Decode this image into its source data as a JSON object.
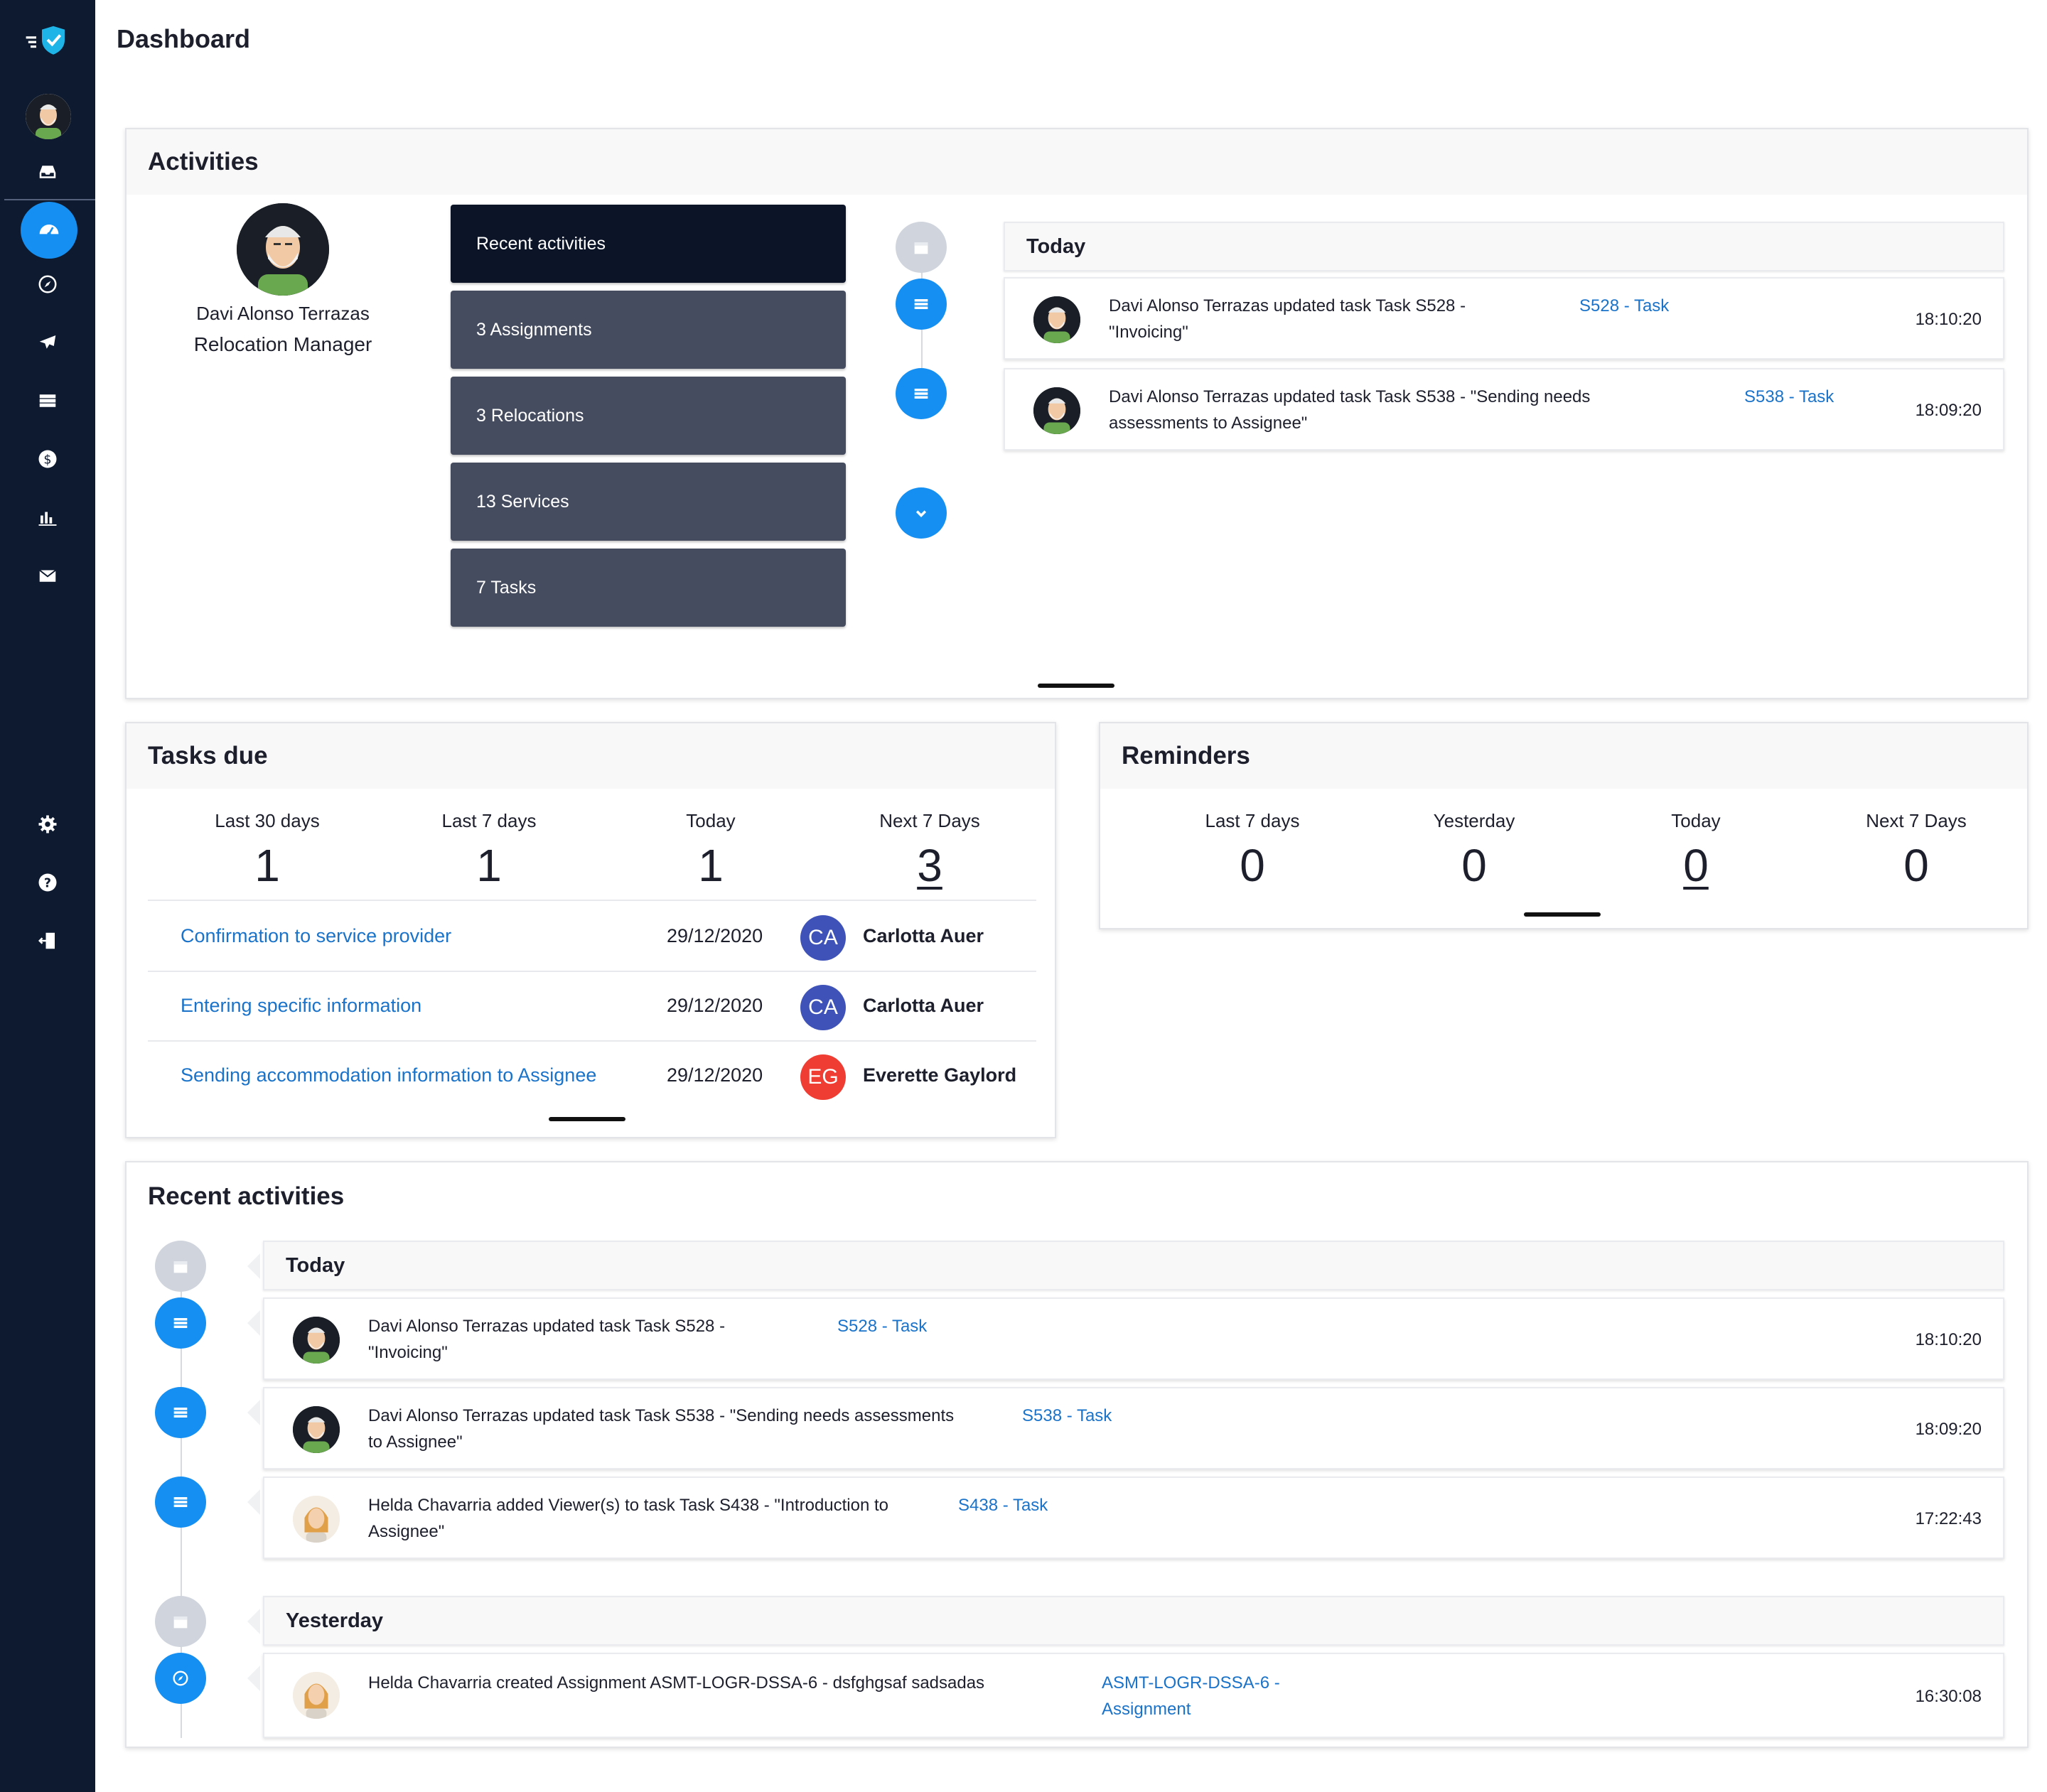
{
  "page": {
    "title": "Dashboard"
  },
  "sidebar": {
    "items": [
      "menu-logo",
      "avatar",
      "inbox",
      "dashboard",
      "compass",
      "flights",
      "services",
      "billing",
      "reports",
      "messages",
      "settings",
      "help",
      "logout"
    ]
  },
  "activities": {
    "title": "Activities",
    "profile": {
      "name": "Davi Alonso Terrazas",
      "role": "Relocation Manager"
    },
    "buttons": [
      "Recent activities",
      "3 Assignments",
      "3 Relocations",
      "13 Services",
      "7 Tasks"
    ],
    "timeline": {
      "day": "Today",
      "entries": [
        {
          "text": [
            "Davi Alonso Terrazas updated task Task S528 -",
            "\"Invoicing\""
          ],
          "link": "S528 - Task",
          "time": "18:10:20"
        },
        {
          "text": [
            "Davi Alonso Terrazas updated task Task S538 - \"Sending needs",
            "assessments to Assignee\""
          ],
          "link": "S538 - Task",
          "time": "18:09:20"
        }
      ]
    }
  },
  "tasks_due": {
    "title": "Tasks due",
    "stats": [
      {
        "label": "Last 30 days",
        "value": "1"
      },
      {
        "label": "Last 7 days",
        "value": "1"
      },
      {
        "label": "Today",
        "value": "1"
      },
      {
        "label": "Next 7 Days",
        "value": "3"
      }
    ],
    "rows": [
      {
        "name": "Confirmation to service provider",
        "date": "29/12/2020",
        "initials": "CA",
        "user": "Carlotta Auer",
        "color": "#3e52b8"
      },
      {
        "name": "Entering specific information",
        "date": "29/12/2020",
        "initials": "CA",
        "user": "Carlotta Auer",
        "color": "#3e52b8"
      },
      {
        "name": "Sending accommodation information to Assignee",
        "date": "29/12/2020",
        "initials": "EG",
        "user": "Everette Gaylord",
        "color": "#ef3d33"
      }
    ]
  },
  "reminders": {
    "title": "Reminders",
    "stats": [
      {
        "label": "Last 7 days",
        "value": "0"
      },
      {
        "label": "Yesterday",
        "value": "0"
      },
      {
        "label": "Today",
        "value": "0"
      },
      {
        "label": "Next 7 Days",
        "value": "0"
      }
    ]
  },
  "recent": {
    "title": "Recent activities",
    "today": "Today",
    "yesterday": "Yesterday",
    "entries": [
      {
        "text": [
          "Davi Alonso Terrazas updated task Task S528 -",
          "\"Invoicing\""
        ],
        "link": [
          "S528 - Task"
        ],
        "time": "18:10:20"
      },
      {
        "text": [
          "Davi Alonso Terrazas updated task Task S538 - \"Sending needs assessments",
          "to Assignee\""
        ],
        "link": [
          "S538 - Task"
        ],
        "time": "18:09:20"
      },
      {
        "text": [
          "Helda Chavarria added Viewer(s) to task Task S438 - \"Introduction to",
          "Assignee\""
        ],
        "link": [
          "S438 - Task"
        ],
        "time": "17:22:43"
      },
      {
        "text": [
          "Helda Chavarria created Assignment ASMT-LOGR-DSSA-6 - dsfghgsaf sadsadas",
          ""
        ],
        "link": [
          "ASMT-LOGR-DSSA-6 -",
          "Assignment"
        ],
        "time": "16:30:08"
      }
    ]
  },
  "colors": {
    "sidebar": "#0e1a2f",
    "accent": "#1590f2",
    "link": "#1a73c9",
    "button": "#464c5f",
    "button_active": "#0c1428"
  }
}
